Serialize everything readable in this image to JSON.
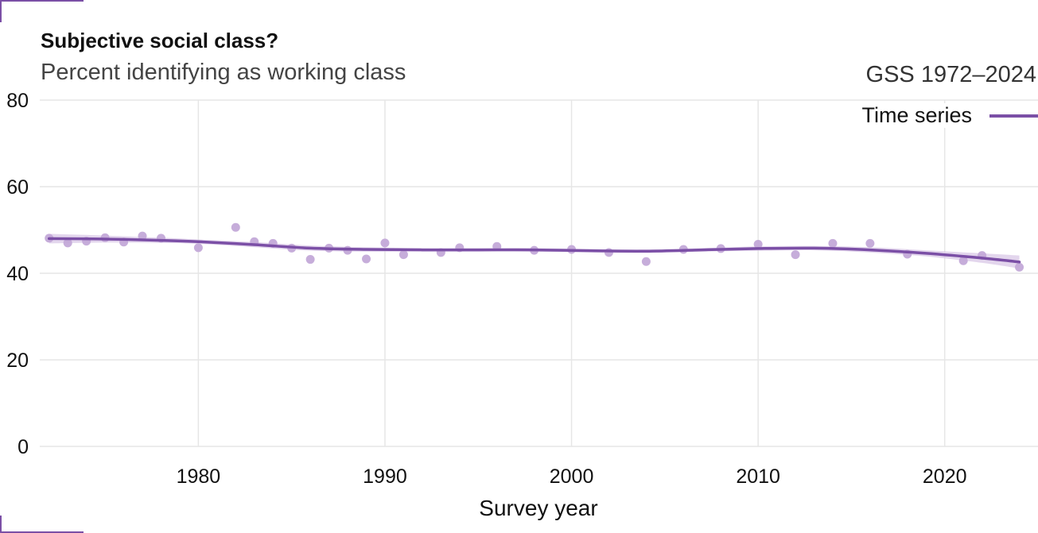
{
  "chart_data": {
    "type": "line",
    "title": "Subjective social class?",
    "subtitle": "Percent identifying as working class",
    "source": "GSS 1972–2024",
    "xlabel": "Survey year",
    "ylabel": "",
    "xlim": [
      1971.5,
      2025
    ],
    "ylim": [
      0,
      80
    ],
    "x_ticks": [
      1980,
      1990,
      2000,
      2010,
      2020
    ],
    "y_ticks": [
      0,
      20,
      40,
      60,
      80
    ],
    "grid": true,
    "legend": {
      "position": "top-right",
      "label": "Time series"
    },
    "colors": {
      "accent": "#7b4fa6",
      "points": "#c3a9d8",
      "band": "#d7c4e6",
      "grid": "#e6e6e6"
    },
    "points": {
      "x": [
        1972,
        1973,
        1974,
        1975,
        1976,
        1977,
        1978,
        1980,
        1982,
        1983,
        1984,
        1985,
        1986,
        1987,
        1988,
        1989,
        1990,
        1991,
        1993,
        1994,
        1996,
        1998,
        2000,
        2002,
        2004,
        2006,
        2008,
        2010,
        2012,
        2014,
        2016,
        2018,
        2021,
        2022,
        2024
      ],
      "y": [
        48.1,
        47.0,
        47.4,
        48.2,
        47.2,
        48.6,
        48.1,
        45.9,
        50.6,
        47.3,
        46.9,
        45.8,
        43.2,
        45.8,
        45.3,
        43.3,
        47.0,
        44.3,
        44.8,
        45.9,
        46.2,
        45.3,
        45.5,
        44.8,
        42.7,
        45.5,
        45.7,
        46.7,
        44.3,
        46.9,
        46.9,
        44.4,
        42.9,
        44.1,
        41.4
      ]
    },
    "series": [
      {
        "name": "Time series",
        "x": [
          1972,
          1975,
          1978,
          1980,
          1983,
          1986,
          1989,
          1992,
          1995,
          1998,
          2001,
          2004,
          2007,
          2010,
          2013,
          2016,
          2019,
          2022,
          2024
        ],
        "values": [
          48.0,
          47.9,
          47.6,
          47.3,
          46.6,
          45.8,
          45.5,
          45.4,
          45.4,
          45.4,
          45.2,
          45.1,
          45.4,
          45.7,
          45.8,
          45.4,
          44.6,
          43.5,
          42.6
        ],
        "band_lower": [
          46.9,
          47.1,
          47.0,
          46.8,
          46.0,
          45.2,
          45.0,
          45.0,
          45.0,
          45.0,
          44.8,
          44.7,
          45.0,
          45.2,
          45.3,
          44.8,
          43.9,
          42.4,
          41.1
        ],
        "band_upper": [
          49.1,
          48.7,
          48.2,
          47.8,
          47.2,
          46.4,
          46.0,
          45.8,
          45.8,
          45.8,
          45.6,
          45.5,
          45.8,
          46.2,
          46.3,
          46.0,
          45.3,
          44.6,
          44.1
        ]
      }
    ]
  }
}
